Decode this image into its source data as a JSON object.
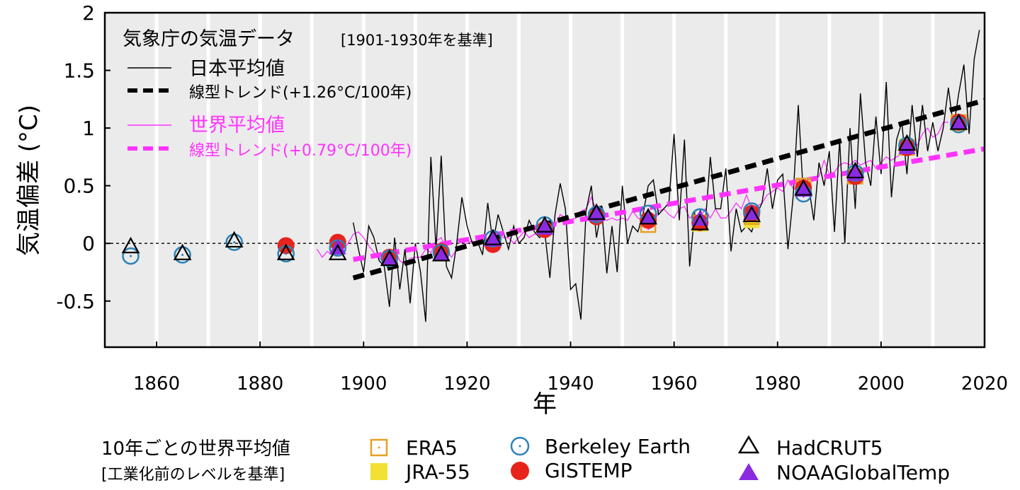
{
  "chart_data": {
    "type": "line",
    "ylabel": "気温偏差 (°C)",
    "xlabel": "年",
    "xlim": [
      1850,
      2020
    ],
    "ylim": [
      -0.9,
      2.0
    ],
    "x_ticks": [
      1860,
      1880,
      1900,
      1920,
      1940,
      1960,
      1980,
      2000,
      2020
    ],
    "x_tick_labels": [
      "1860",
      "1880",
      "1900",
      "1920",
      "1940",
      "1960",
      "1980",
      "2000",
      "2020"
    ],
    "y_ticks": [
      -0.5,
      0,
      0.5,
      1,
      1.5,
      2
    ],
    "y_tick_labels": [
      "-0.5",
      "0",
      "0.5",
      "1",
      "1.5",
      "2"
    ],
    "legend_top": {
      "header_main": "気象庁の気温データ",
      "header_sub": "[1901-1930年を基準]",
      "japan_label": "日本平均値",
      "japan_trend_label": "線型トレンド(+1.26°C/100年)",
      "world_label": "世界平均値",
      "world_trend_label": "線型トレンド(+0.79°C/100年)"
    },
    "legend_bottom": {
      "title_line1": "10年ごとの世界平均値",
      "title_line2": "[工業化前のレベルを基準]",
      "entries": [
        "ERA5",
        "JRA-55",
        "Berkeley Earth",
        "GISTEMP",
        "HadCRUT5",
        "NOAAGlobalTemp"
      ]
    },
    "colors": {
      "japan": "#000000",
      "world": "#ff33ff",
      "era5": "#e6a020",
      "jra55": "#f2e035",
      "berkeley": "#2a82b8",
      "gistemp": "#e8231c",
      "hadcrut": "#000000",
      "noaa": "#8a2be2",
      "plot_bg": "#ebebeb",
      "band": "#ffffff"
    },
    "japan_series": {
      "name": "日本平均値",
      "x_start": 1898,
      "values": [
        0.18,
        -0.05,
        -0.25,
        0.15,
        0.05,
        -0.15,
        -0.2,
        -0.55,
        0.05,
        -0.4,
        -0.05,
        -0.52,
        0.0,
        -0.25,
        -0.68,
        0.75,
        -0.05,
        0.76,
        -0.2,
        -0.3,
        0.0,
        0.4,
        0.15,
        0.0,
        0.02,
        -0.1,
        0.35,
        0.0,
        0.25,
        0.1,
        -0.05,
        0.15,
        0.0,
        0.05,
        0.2,
        0.1,
        0.05,
        0.1,
        -0.3,
        0.25,
        0.52,
        0.3,
        -0.4,
        -0.35,
        -0.66,
        0.28,
        0.5,
        0.05,
        0.3,
        -0.26,
        0.15,
        -0.25,
        0.5,
        0.0,
        0.15,
        0.1,
        0.25,
        0.5,
        0.55,
        0.25,
        0.3,
        0.35,
        0.95,
        0.2,
        0.9,
        -0.2,
        0.28,
        0.3,
        0.15,
        0.75,
        0.3,
        0.3,
        0.65,
        -0.07,
        0.3,
        0.1,
        0.15,
        0.1,
        0.25,
        0.35,
        0.65,
        0.3,
        0.55,
        0.6,
        -0.05,
        0.4,
        1.2,
        0.4,
        0.5,
        0.2,
        0.7,
        0.5,
        0.8,
        0.1,
        0.9,
        0.0,
        1.0,
        0.3,
        1.3,
        0.7,
        0.5,
        1.1,
        0.6,
        1.4,
        0.4,
        0.9,
        1.05,
        0.6,
        1.2,
        0.75,
        1.2,
        0.8,
        1.05,
        0.8,
        1.0,
        1.35,
        1.0,
        1.3,
        1.55,
        0.95,
        1.6,
        1.85
      ]
    },
    "world_series": {
      "name": "世界平均値",
      "x_start": 1891,
      "values": [
        -0.05,
        -0.12,
        -0.07,
        -0.1,
        -0.1,
        -0.05,
        0.0,
        0.08,
        0.1,
        0.05,
        -0.02,
        -0.08,
        -0.12,
        -0.18,
        -0.12,
        -0.05,
        -0.15,
        -0.18,
        -0.13,
        -0.12,
        -0.12,
        -0.05,
        -0.08,
        0.02,
        0.05,
        -0.05,
        -0.12,
        -0.05,
        -0.02,
        0.0,
        0.02,
        0.0,
        0.02,
        0.03,
        0.05,
        0.1,
        0.05,
        0.05,
        0.0,
        0.05,
        0.1,
        0.05,
        0.08,
        0.08,
        0.1,
        0.1,
        0.15,
        0.25,
        0.22,
        0.2,
        0.22,
        0.28,
        0.3,
        0.4,
        0.28,
        0.22,
        0.2,
        0.22,
        0.2,
        0.22,
        0.2,
        0.28,
        0.22,
        0.2,
        0.12,
        0.15,
        0.28,
        0.3,
        0.25,
        0.22,
        0.3,
        0.32,
        0.22,
        0.25,
        0.22,
        0.3,
        0.22,
        0.3,
        0.22,
        0.22,
        0.28,
        0.35,
        0.3,
        0.42,
        0.3,
        0.32,
        0.35,
        0.42,
        0.45,
        0.48,
        0.45,
        0.55,
        0.48,
        0.45,
        0.45,
        0.52,
        0.55,
        0.58,
        0.72,
        0.6,
        0.62,
        0.68,
        0.7,
        0.68,
        0.72,
        0.68,
        0.7,
        0.72,
        0.65,
        0.7,
        0.75,
        0.72,
        0.75,
        0.78,
        0.9,
        0.88,
        0.85,
        0.95,
        1.0,
        0.92,
        0.95,
        1.05,
        1.05
      ]
    },
    "japan_trend": {
      "x": [
        1898,
        2020
      ],
      "y": [
        -0.3,
        1.24
      ]
    },
    "world_trend": {
      "x": [
        1898,
        2020
      ],
      "y": [
        -0.14,
        0.82
      ]
    },
    "decadal": {
      "x": [
        1855,
        1865,
        1875,
        1885,
        1895,
        1905,
        1915,
        1925,
        1935,
        1945,
        1955,
        1965,
        1975,
        1985,
        1995,
        2005,
        2015
      ],
      "era5": [
        null,
        null,
        null,
        null,
        null,
        null,
        null,
        null,
        null,
        null,
        0.16,
        0.18,
        0.23,
        0.5,
        0.58,
        0.83,
        1.05
      ],
      "jra55": [
        null,
        null,
        null,
        null,
        null,
        null,
        null,
        null,
        null,
        null,
        null,
        0.17,
        0.2,
        0.48,
        0.58,
        0.84,
        1.04
      ],
      "berkeley": [
        -0.11,
        -0.1,
        0.01,
        -0.09,
        -0.04,
        -0.13,
        -0.08,
        0.04,
        0.16,
        0.25,
        0.26,
        0.23,
        0.28,
        0.43,
        0.61,
        0.85,
        1.03
      ],
      "gistemp": [
        null,
        null,
        null,
        -0.02,
        0.01,
        -0.12,
        -0.07,
        -0.01,
        0.12,
        0.23,
        0.2,
        0.18,
        0.26,
        0.48,
        0.58,
        0.83,
        1.05
      ],
      "hadcrut": [
        -0.03,
        -0.09,
        0.02,
        -0.09,
        -0.09,
        -0.14,
        -0.1,
        0.04,
        0.15,
        0.26,
        0.22,
        0.17,
        0.24,
        0.47,
        0.62,
        0.86,
        1.04
      ],
      "noaa": [
        null,
        null,
        null,
        null,
        -0.04,
        -0.13,
        -0.09,
        0.03,
        0.13,
        0.25,
        0.22,
        0.21,
        0.26,
        0.46,
        0.6,
        0.83,
        1.04
      ]
    }
  }
}
